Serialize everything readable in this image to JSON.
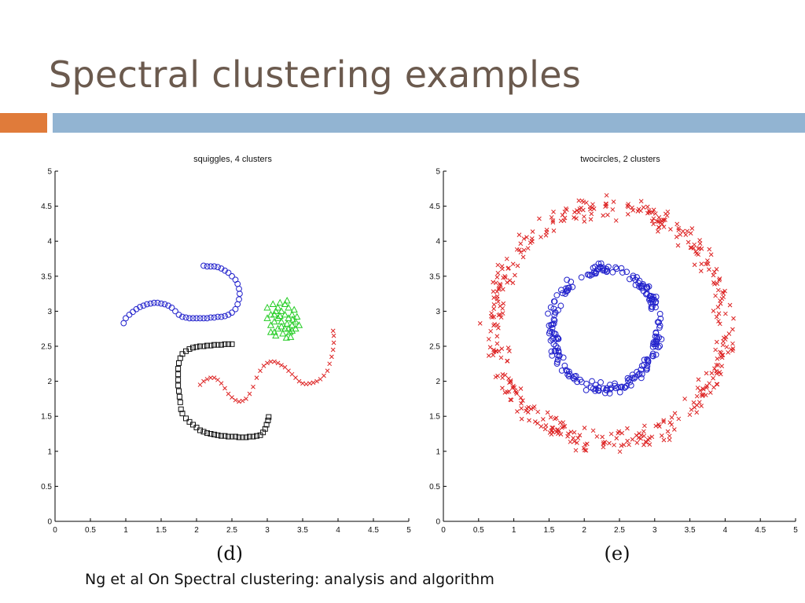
{
  "slide": {
    "title": "Spectral clustering examples",
    "citation": "Ng et al On Spectral clustering: analysis and algorithm",
    "colors": {
      "title": "#6b5a4e",
      "accent_orange": "#e07b3a",
      "accent_blue": "#92b4d2"
    }
  },
  "chart_data": [
    {
      "type": "scatter",
      "title": "squiggles, 4 clusters",
      "panel_label": "(d)",
      "xlim": [
        0,
        5
      ],
      "ylim": [
        0,
        5
      ],
      "x_ticks": [
        "0",
        "0.5",
        "1",
        "1.5",
        "2",
        "2.5",
        "3",
        "3.5",
        "4",
        "4.5",
        "5"
      ],
      "y_ticks": [
        "0",
        "0.5",
        "1",
        "1.5",
        "2",
        "2.5",
        "3",
        "3.5",
        "4",
        "4.5",
        "5"
      ],
      "series": [
        {
          "marker": "circle",
          "color": "#2222cc",
          "points": [
            [
              0.97,
              2.83
            ],
            [
              1.0,
              2.9
            ],
            [
              1.05,
              2.95
            ],
            [
              1.1,
              2.99
            ],
            [
              1.15,
              3.03
            ],
            [
              1.2,
              3.06
            ],
            [
              1.25,
              3.08
            ],
            [
              1.3,
              3.1
            ],
            [
              1.35,
              3.11
            ],
            [
              1.4,
              3.12
            ],
            [
              1.45,
              3.12
            ],
            [
              1.5,
              3.11
            ],
            [
              1.55,
              3.1
            ],
            [
              1.6,
              3.08
            ],
            [
              1.65,
              3.05
            ],
            [
              1.7,
              3.0
            ],
            [
              1.75,
              2.95
            ],
            [
              1.8,
              2.92
            ],
            [
              1.85,
              2.91
            ],
            [
              1.9,
              2.9
            ],
            [
              1.95,
              2.9
            ],
            [
              2.0,
              2.9
            ],
            [
              2.05,
              2.9
            ],
            [
              2.1,
              2.9
            ],
            [
              2.15,
              2.9
            ],
            [
              2.2,
              2.91
            ],
            [
              2.25,
              2.91
            ],
            [
              2.3,
              2.92
            ],
            [
              2.35,
              2.92
            ],
            [
              2.4,
              2.93
            ],
            [
              2.45,
              2.95
            ],
            [
              2.5,
              2.98
            ],
            [
              2.55,
              3.03
            ],
            [
              2.58,
              3.1
            ],
            [
              2.6,
              3.17
            ],
            [
              2.61,
              3.25
            ],
            [
              2.6,
              3.32
            ],
            [
              2.58,
              3.39
            ],
            [
              2.55,
              3.45
            ],
            [
              2.5,
              3.5
            ],
            [
              2.45,
              3.55
            ],
            [
              2.4,
              3.58
            ],
            [
              2.35,
              3.61
            ],
            [
              2.3,
              3.63
            ],
            [
              2.25,
              3.64
            ],
            [
              2.2,
              3.64
            ],
            [
              2.15,
              3.64
            ],
            [
              2.1,
              3.65
            ]
          ]
        },
        {
          "marker": "triangle",
          "color": "#22cc22",
          "points": [
            [
              3.1,
              2.95
            ],
            [
              3.15,
              3.05
            ],
            [
              3.2,
              2.85
            ],
            [
              3.25,
              3.1
            ],
            [
              3.3,
              2.75
            ],
            [
              3.35,
              2.95
            ],
            [
              3.4,
              2.85
            ],
            [
              3.05,
              2.8
            ],
            [
              3.1,
              2.7
            ],
            [
              3.15,
              2.9
            ],
            [
              3.2,
              3.0
            ],
            [
              3.25,
              2.75
            ],
            [
              3.3,
              2.9
            ],
            [
              3.35,
              2.8
            ],
            [
              3.45,
              2.8
            ],
            [
              3.0,
              3.05
            ],
            [
              3.05,
              2.95
            ],
            [
              3.18,
              3.12
            ],
            [
              3.28,
              3.15
            ],
            [
              3.12,
              2.65
            ],
            [
              3.22,
              2.68
            ],
            [
              3.32,
              2.7
            ],
            [
              3.38,
              3.02
            ],
            [
              3.42,
              2.92
            ],
            [
              3.0,
              2.9
            ],
            [
              3.1,
              2.85
            ],
            [
              3.2,
              2.78
            ],
            [
              3.28,
              2.82
            ],
            [
              3.35,
              2.72
            ],
            [
              3.15,
              2.75
            ],
            [
              3.3,
              3.05
            ],
            [
              3.08,
              3.1
            ],
            [
              3.25,
              2.95
            ],
            [
              3.4,
              2.75
            ],
            [
              3.05,
              2.7
            ],
            [
              3.33,
              2.63
            ],
            [
              3.18,
              2.93
            ],
            [
              3.36,
              2.88
            ],
            [
              3.12,
              3.0
            ],
            [
              3.27,
              2.62
            ]
          ]
        },
        {
          "marker": "square",
          "color": "#111111",
          "points": [
            [
              2.5,
              2.53
            ],
            [
              2.45,
              2.53
            ],
            [
              2.4,
              2.53
            ],
            [
              2.35,
              2.52
            ],
            [
              2.3,
              2.52
            ],
            [
              2.25,
              2.52
            ],
            [
              2.2,
              2.51
            ],
            [
              2.15,
              2.51
            ],
            [
              2.1,
              2.5
            ],
            [
              2.05,
              2.5
            ],
            [
              2.0,
              2.49
            ],
            [
              1.95,
              2.48
            ],
            [
              1.9,
              2.46
            ],
            [
              1.85,
              2.43
            ],
            [
              1.8,
              2.39
            ],
            [
              1.77,
              2.33
            ],
            [
              1.75,
              2.26
            ],
            [
              1.74,
              2.18
            ],
            [
              1.74,
              2.1
            ],
            [
              1.74,
              2.02
            ],
            [
              1.74,
              1.94
            ],
            [
              1.75,
              1.86
            ],
            [
              1.76,
              1.78
            ],
            [
              1.77,
              1.7
            ],
            [
              1.78,
              1.6
            ],
            [
              1.8,
              1.54
            ],
            [
              1.85,
              1.47
            ],
            [
              1.9,
              1.42
            ],
            [
              1.95,
              1.38
            ],
            [
              2.0,
              1.34
            ],
            [
              2.05,
              1.3
            ],
            [
              2.1,
              1.28
            ],
            [
              2.15,
              1.26
            ],
            [
              2.2,
              1.25
            ],
            [
              2.25,
              1.24
            ],
            [
              2.3,
              1.23
            ],
            [
              2.35,
              1.22
            ],
            [
              2.4,
              1.22
            ],
            [
              2.45,
              1.21
            ],
            [
              2.5,
              1.21
            ],
            [
              2.55,
              1.21
            ],
            [
              2.6,
              1.2
            ],
            [
              2.65,
              1.2
            ],
            [
              2.7,
              1.2
            ],
            [
              2.75,
              1.21
            ],
            [
              2.8,
              1.21
            ],
            [
              2.85,
              1.22
            ],
            [
              2.9,
              1.23
            ],
            [
              2.94,
              1.27
            ],
            [
              2.97,
              1.32
            ],
            [
              2.99,
              1.38
            ],
            [
              3.01,
              1.44
            ],
            [
              3.02,
              1.49
            ]
          ]
        },
        {
          "marker": "x",
          "color": "#dd2222",
          "points": [
            [
              2.05,
              1.95
            ],
            [
              2.1,
              2.0
            ],
            [
              2.15,
              2.03
            ],
            [
              2.2,
              2.05
            ],
            [
              2.25,
              2.05
            ],
            [
              2.3,
              2.02
            ],
            [
              2.35,
              1.97
            ],
            [
              2.4,
              1.9
            ],
            [
              2.45,
              1.82
            ],
            [
              2.5,
              1.77
            ],
            [
              2.55,
              1.73
            ],
            [
              2.6,
              1.71
            ],
            [
              2.65,
              1.72
            ],
            [
              2.7,
              1.75
            ],
            [
              2.75,
              1.82
            ],
            [
              2.8,
              1.92
            ],
            [
              2.85,
              2.05
            ],
            [
              2.9,
              2.15
            ],
            [
              2.95,
              2.22
            ],
            [
              3.0,
              2.26
            ],
            [
              3.05,
              2.28
            ],
            [
              3.1,
              2.28
            ],
            [
              3.15,
              2.26
            ],
            [
              3.2,
              2.23
            ],
            [
              3.25,
              2.2
            ],
            [
              3.3,
              2.15
            ],
            [
              3.35,
              2.1
            ],
            [
              3.4,
              2.05
            ],
            [
              3.45,
              2.0
            ],
            [
              3.5,
              1.97
            ],
            [
              3.55,
              1.96
            ],
            [
              3.6,
              1.97
            ],
            [
              3.65,
              1.98
            ],
            [
              3.7,
              2.0
            ],
            [
              3.75,
              2.03
            ],
            [
              3.8,
              2.08
            ],
            [
              3.85,
              2.15
            ],
            [
              3.88,
              2.25
            ],
            [
              3.91,
              2.35
            ],
            [
              3.93,
              2.45
            ],
            [
              3.94,
              2.55
            ],
            [
              3.94,
              2.65
            ],
            [
              3.93,
              2.72
            ]
          ]
        }
      ]
    },
    {
      "type": "scatter",
      "title": "twocircles, 2 clusters",
      "panel_label": "(e)",
      "xlim": [
        0,
        5
      ],
      "ylim": [
        0,
        5
      ],
      "x_ticks": [
        "0",
        "0.5",
        "1",
        "1.5",
        "2",
        "2.5",
        "3",
        "3.5",
        "4",
        "4.5",
        "5"
      ],
      "y_ticks": [
        "0",
        "0.5",
        "1",
        "1.5",
        "2",
        "2.5",
        "3",
        "3.5",
        "4",
        "4.5",
        "5"
      ],
      "series": [
        {
          "marker": "x",
          "color": "#dd2222",
          "ring": {
            "center": [
              2.35,
              2.8
            ],
            "rx": 1.65,
            "ry": 1.68,
            "count": 420
          }
        },
        {
          "marker": "circle",
          "color": "#2222cc",
          "ring": {
            "center": [
              2.3,
              2.75
            ],
            "rx": 0.75,
            "ry": 0.85,
            "count": 230
          }
        }
      ]
    }
  ]
}
